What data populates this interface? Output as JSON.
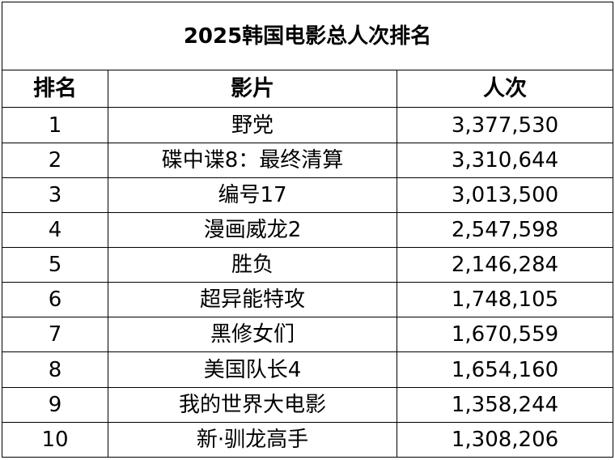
{
  "title": "2025韩国电影总人次排名",
  "columns": [
    "排名",
    "影片",
    "人次"
  ],
  "rows": [
    {
      "rank": "1",
      "film": "野党",
      "admissions": "3,377,530"
    },
    {
      "rank": "2",
      "film": "碟中谍8：最终清算",
      "admissions": "3,310,644"
    },
    {
      "rank": "3",
      "film": "编号17",
      "admissions": "3,013,500"
    },
    {
      "rank": "4",
      "film": "漫画威龙2",
      "admissions": "2,547,598"
    },
    {
      "rank": "5",
      "film": "胜负",
      "admissions": "2,146,284"
    },
    {
      "rank": "6",
      "film": "超异能特攻",
      "admissions": "1,748,105"
    },
    {
      "rank": "7",
      "film": "黑修女们",
      "admissions": "1,670,559"
    },
    {
      "rank": "8",
      "film": "美国队长4",
      "admissions": "1,654,160"
    },
    {
      "rank": "9",
      "film": "我的世界大电影",
      "admissions": "1,358,244"
    },
    {
      "rank": "10",
      "film": "新·驯龙高手",
      "admissions": "1,308,206"
    }
  ]
}
